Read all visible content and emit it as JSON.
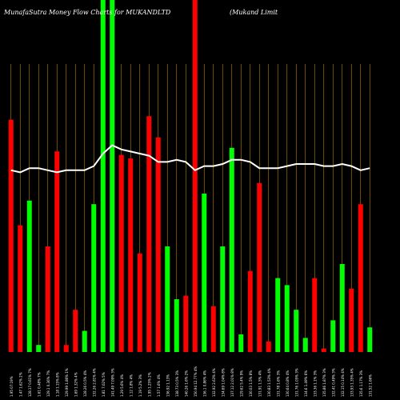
{
  "title_left": "MunafaSutra  Money Flow  Charts for MUKANDLTD",
  "title_right": "(Mukand Limit",
  "chart_data": {
    "type": "bar",
    "title": "MunafaSutra Money Flow Charts for MUKANDLTD (Mukand Limit",
    "grid": true,
    "ylim": [
      0,
      100
    ],
    "colors": {
      "up": "#00ff00",
      "down": "#ff0000",
      "line": "#ffffff",
      "grid": "#b8860b"
    },
    "bars": [
      {
        "label": "1.95 07:19%",
        "value": 66,
        "dir": "down"
      },
      {
        "label": "1.47 1.62% 2%",
        "value": 36,
        "dir": "down"
      },
      {
        "label": "128.17 0.61% 7%",
        "value": 43,
        "dir": "up"
      },
      {
        "label": "1.61 0.48% 7%",
        "value": 2,
        "dir": "up"
      },
      {
        "label": "129.1 0.36% 7%",
        "value": 30,
        "dir": "down"
      },
      {
        "label": "1.18 1.15% 8%",
        "value": 57,
        "dir": "down"
      },
      {
        "label": "129.99 1.86% 1%",
        "value": 2,
        "dir": "down"
      },
      {
        "label": "1.69 1.32% 4%",
        "value": 12,
        "dir": "down"
      },
      {
        "label": "128.26 0.5% 4%",
        "value": 6,
        "dir": "up"
      },
      {
        "label": "132.26 2.81% 4%",
        "value": 42,
        "dir": "up"
      },
      {
        "label": "1.81 7.02% 5%",
        "value": 100,
        "dir": "up"
      },
      {
        "label": "141.49 7.09% 3%",
        "value": 100,
        "dir": "up"
      },
      {
        "label": "1.29 5.6% 4%",
        "value": 56,
        "dir": "down"
      },
      {
        "label": "1.12 1.8% 4%",
        "value": 55,
        "dir": "down"
      },
      {
        "label": "1.19 5.2% 3%",
        "value": 28,
        "dir": "down"
      },
      {
        "label": "1.95 1.25% 2%",
        "value": 67,
        "dir": "down"
      },
      {
        "label": "1.57 1.6% 4%",
        "value": 61,
        "dir": "down"
      },
      {
        "label": "136.92 1.13%",
        "value": 30,
        "dir": "up"
      },
      {
        "label": "138.73 0.5% 3%",
        "value": 15,
        "dir": "up"
      },
      {
        "label": "140.26 1.6% 2%",
        "value": 16,
        "dir": "down"
      },
      {
        "label": "150.94 12.77% 4%",
        "value": 100,
        "dir": "down"
      },
      {
        "label": "136.1 0.86% 4%",
        "value": 45,
        "dir": "up"
      },
      {
        "label": "132.92 2.63% 4%",
        "value": 13,
        "dir": "down"
      },
      {
        "label": "134.69 1.04% 8%",
        "value": 30,
        "dir": "up"
      },
      {
        "label": "137.12 2.01% 8%",
        "value": 58,
        "dir": "up"
      },
      {
        "label": "129.62 5.4% 9%",
        "value": 5,
        "dir": "up"
      },
      {
        "label": "130.03 1.5% 8%",
        "value": 23,
        "dir": "down"
      },
      {
        "label": "131.91 1.5% 4%",
        "value": 48,
        "dir": "down"
      },
      {
        "label": "130.83 1.53% 4%",
        "value": 3,
        "dir": "down"
      },
      {
        "label": "131.78 1.6% 3%",
        "value": 21,
        "dir": "up"
      },
      {
        "label": "130.64 0.8% 4%",
        "value": 19,
        "dir": "up"
      },
      {
        "label": "131.76 1.05% 3%",
        "value": 12,
        "dir": "up"
      },
      {
        "label": "134.6 1.49% 6%",
        "value": 4,
        "dir": "up"
      },
      {
        "label": "133.36 1.1% 3%",
        "value": 21,
        "dir": "down"
      },
      {
        "label": "135.86 1.87% 3%",
        "value": 1,
        "dir": "down"
      },
      {
        "label": "132.41 0.49% 3%",
        "value": 9,
        "dir": "up"
      },
      {
        "label": "132.15 0.14% 4%",
        "value": 25,
        "dir": "up"
      },
      {
        "label": "133.93 1.35% 4%",
        "value": 18,
        "dir": "down"
      },
      {
        "label": "135.6 1.17% 3%",
        "value": 42,
        "dir": "down"
      },
      {
        "label": "131.52 1.66%",
        "value": 7,
        "dir": "up"
      }
    ],
    "line": [
      62,
      61,
      63,
      63,
      62,
      61,
      62,
      62,
      62,
      64,
      70,
      74,
      72,
      71,
      70,
      69,
      66,
      66,
      67,
      66,
      62,
      64,
      64,
      65,
      67,
      67,
      66,
      63,
      63,
      63,
      64,
      65,
      65,
      65,
      64,
      64,
      65,
      64,
      62,
      63
    ]
  }
}
